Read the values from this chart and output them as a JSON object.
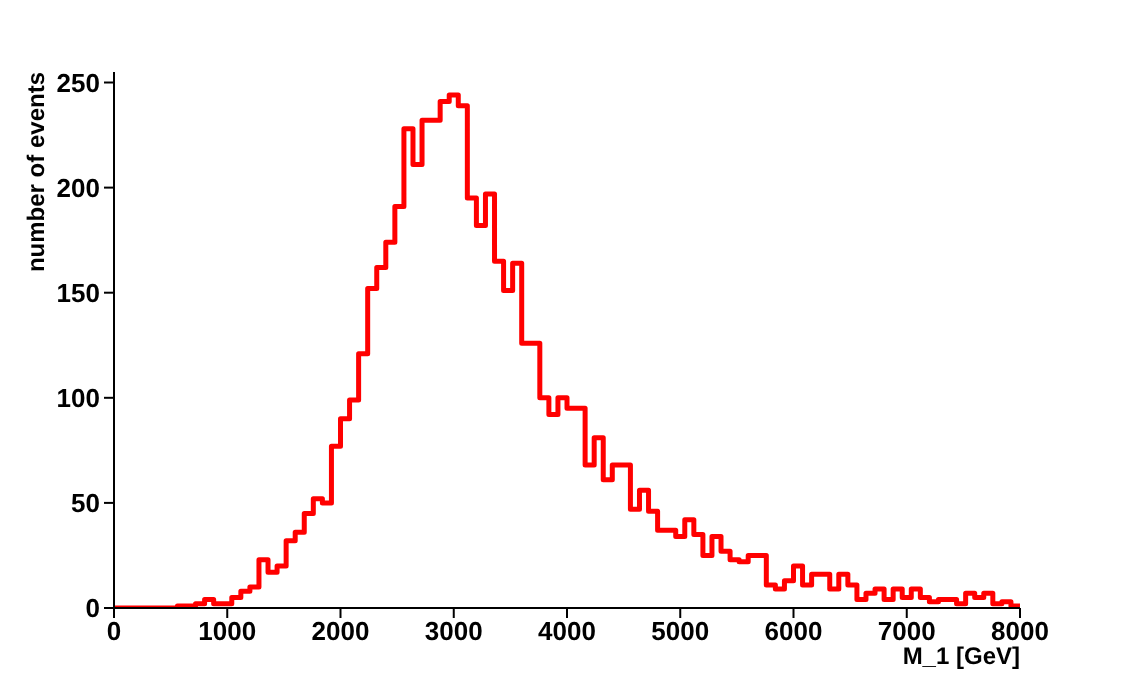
{
  "chart_data": {
    "type": "histogram",
    "xlabel": "M_1 [GeV]",
    "ylabel": "number of events",
    "color": "#ff0000",
    "bins": [
      0,
      80,
      160,
      240,
      320,
      400,
      480,
      560,
      640,
      720,
      800,
      880,
      960,
      1040,
      1120,
      1200,
      1280,
      1360,
      1440,
      1520,
      1600,
      1680,
      1760,
      1840,
      1920,
      2000,
      2080,
      2160,
      2240,
      2320,
      2400,
      2480,
      2560,
      2640,
      2720,
      2800,
      2880,
      2960,
      3040,
      3120,
      3200,
      3280,
      3360,
      3440,
      3520,
      3600,
      3680,
      3760,
      3840,
      3920,
      4000,
      4080,
      4160,
      4240,
      4320,
      4400,
      4480,
      4560,
      4640,
      4720,
      4800,
      4880,
      4960,
      5040,
      5120,
      5200,
      5280,
      5360,
      5440,
      5520,
      5600,
      5680,
      5760,
      5840,
      5920,
      6000,
      6080,
      6160,
      6240,
      6320,
      6400,
      6480,
      6560,
      6640,
      6720,
      6800,
      6880,
      6960,
      7040,
      7120,
      7200,
      7280,
      7360,
      7440,
      7520,
      7600,
      7680,
      7760,
      7840,
      7920,
      8000
    ],
    "values": [
      0,
      0,
      0,
      0,
      0,
      0,
      0,
      1,
      1,
      2,
      4,
      2,
      2,
      5,
      8,
      10,
      23,
      17,
      20,
      32,
      36,
      45,
      52,
      50,
      77,
      90,
      99,
      121,
      152,
      162,
      174,
      191,
      228,
      211,
      232,
      232,
      241,
      244,
      239,
      195,
      182,
      197,
      165,
      151,
      164,
      126,
      126,
      100,
      92,
      100,
      95,
      95,
      68,
      81,
      61,
      68,
      68,
      47,
      56,
      46,
      37,
      37,
      34,
      42,
      35,
      25,
      34,
      27,
      23,
      22,
      25,
      25,
      11,
      9,
      13,
      20,
      11,
      16,
      16,
      9,
      16,
      11,
      4,
      7,
      9,
      4,
      9,
      5,
      9,
      5,
      3,
      4,
      4,
      2,
      7,
      5,
      7,
      2,
      3,
      1
    ],
    "xlim": [
      0,
      8000
    ],
    "xticks": [
      0,
      1000,
      2000,
      3000,
      4000,
      5000,
      6000,
      7000,
      8000
    ],
    "ylim": [
      0,
      255
    ],
    "yticks": [
      0,
      50,
      100,
      150,
      200,
      250
    ]
  }
}
